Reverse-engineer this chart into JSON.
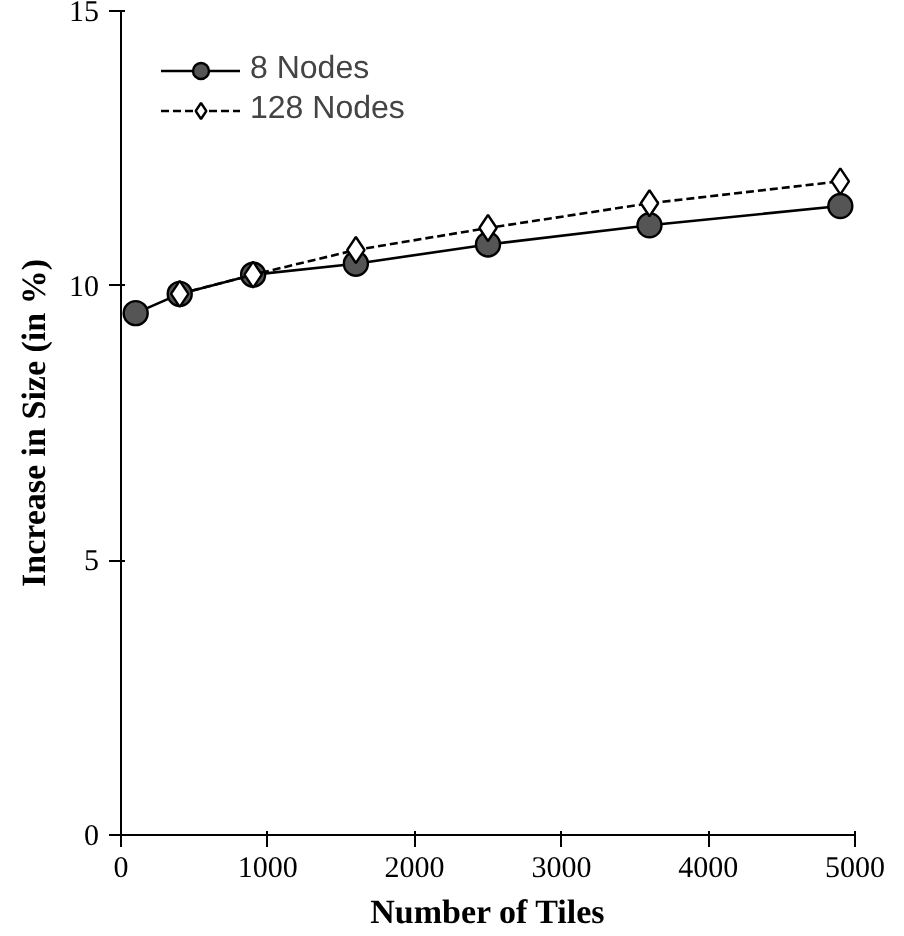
{
  "chart_data": {
    "type": "line",
    "xlabel": "Number of Tiles",
    "ylabel": "Increase in Size (in %)",
    "x": [
      100,
      400,
      900,
      1600,
      2500,
      3600,
      4900
    ],
    "series": [
      {
        "name": "8 Nodes",
        "color": "#555555",
        "values": [
          9.5,
          9.85,
          10.2,
          10.4,
          10.75,
          11.1,
          11.45
        ],
        "marker": "circle",
        "line_style": "solid"
      },
      {
        "name": "128 Nodes",
        "color": "#ffffff",
        "values": [
          null,
          9.85,
          10.2,
          10.65,
          11.05,
          11.5,
          11.9
        ],
        "marker": "diamond",
        "line_style": "dashed"
      }
    ],
    "xlim": [
      0,
      5000
    ],
    "xticks": [
      0,
      1000,
      2000,
      3000,
      4000,
      5000
    ],
    "ylim": [
      0,
      15
    ],
    "yticks": [
      0,
      5,
      10,
      15
    ],
    "grid": false,
    "legend": "top left"
  }
}
